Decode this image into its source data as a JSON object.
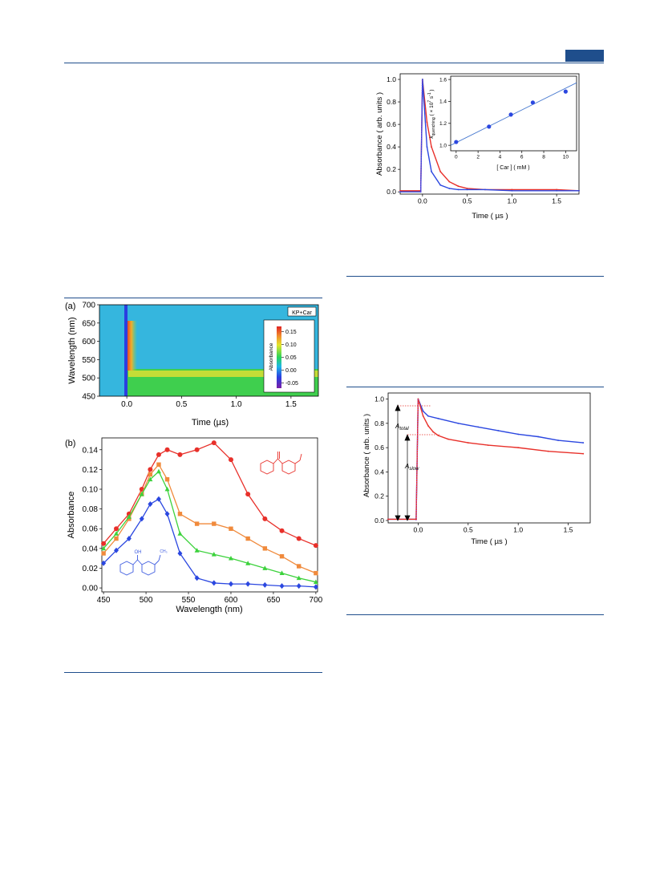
{
  "chart_data": [
    {
      "type": "line",
      "panel": "top-right",
      "xlabel": "Time  ( µs )",
      "ylabel": "Absorbance  ( arb. units )",
      "xlim": [
        -0.25,
        1.75
      ],
      "ylim": [
        -0.02,
        1.05
      ],
      "xticks": [
        "0.0",
        "0.5",
        "1.0",
        "1.5"
      ],
      "yticks": [
        "0.0",
        "0.2",
        "0.4",
        "0.6",
        "0.8",
        "1.0"
      ],
      "series": [
        {
          "color": "#e8302a",
          "x": [
            -0.25,
            -0.02,
            0.0,
            0.05,
            0.1,
            0.2,
            0.3,
            0.4,
            0.5,
            0.7,
            1.0,
            1.5,
            1.75
          ],
          "y": [
            0.01,
            0.01,
            1.0,
            0.62,
            0.4,
            0.18,
            0.09,
            0.05,
            0.03,
            0.02,
            0.02,
            0.02,
            0.01
          ]
        },
        {
          "color": "#2b47e0",
          "x": [
            -0.25,
            -0.02,
            0.0,
            0.05,
            0.1,
            0.2,
            0.3,
            0.4,
            0.5,
            0.7,
            1.0,
            1.5,
            1.75
          ],
          "y": [
            0.0,
            0.0,
            1.0,
            0.4,
            0.18,
            0.06,
            0.03,
            0.02,
            0.02,
            0.02,
            0.01,
            0.01,
            0.01
          ]
        }
      ],
      "inset": {
        "type": "scatter",
        "xlabel": "[ Car ]  ( mM )",
        "ylabel": "k_quenching ( × 10^7 s^-1 )",
        "xlim": [
          -0.5,
          11
        ],
        "ylim": [
          0.95,
          1.63
        ],
        "xticks": [
          "0",
          "2",
          "4",
          "6",
          "8",
          "10"
        ],
        "yticks": [
          "1.0",
          "1.2",
          "1.4",
          "1.6"
        ],
        "x": [
          0,
          3,
          5,
          7,
          10
        ],
        "y": [
          1.03,
          1.17,
          1.28,
          1.39,
          1.49
        ],
        "fit": {
          "x": [
            -0.5,
            11
          ],
          "y": [
            1.0,
            1.57
          ]
        }
      }
    },
    {
      "type": "heatmap",
      "panel": "(a)",
      "label": "(a)",
      "xlabel": "Time  (µs)",
      "ylabel": "Wavelength  (nm)",
      "xlim": [
        -0.25,
        1.75
      ],
      "ylim": [
        450,
        700
      ],
      "xticks": [
        "0.0",
        "0.5",
        "1.0",
        "1.5"
      ],
      "yticks": [
        "450",
        "500",
        "550",
        "600",
        "650",
        "700"
      ],
      "legend_box": "KP+Car",
      "colorbar_label": "Absorbance",
      "colorbar_ticks": [
        "0.15",
        "0.10",
        "0.05",
        "0.00",
        "-0.05"
      ]
    },
    {
      "type": "line",
      "panel": "(b)",
      "label": "(b)",
      "xlabel": "Wavelength  (nm)",
      "ylabel": "Absorbance",
      "xlim": [
        448,
        702
      ],
      "ylim": [
        -0.004,
        0.152
      ],
      "xticks": [
        "450",
        "500",
        "550",
        "600",
        "650",
        "700"
      ],
      "yticks": [
        "0.00",
        "0.02",
        "0.04",
        "0.06",
        "0.08",
        "0.10",
        "0.12",
        "0.14"
      ],
      "x": [
        450,
        465,
        480,
        495,
        505,
        515,
        525,
        540,
        560,
        580,
        600,
        620,
        640,
        660,
        680,
        700
      ],
      "series": [
        {
          "color": "#e8302a",
          "marker": "circle",
          "y": [
            0.045,
            0.06,
            0.075,
            0.1,
            0.12,
            0.135,
            0.14,
            0.135,
            0.14,
            0.147,
            0.13,
            0.095,
            0.07,
            0.058,
            0.05,
            0.043
          ]
        },
        {
          "color": "#f08a3c",
          "marker": "square",
          "y": [
            0.035,
            0.05,
            0.07,
            0.095,
            0.115,
            0.125,
            0.11,
            0.075,
            0.065,
            0.065,
            0.06,
            0.05,
            0.04,
            0.032,
            0.022,
            0.015
          ]
        },
        {
          "color": "#3cd23c",
          "marker": "triangle",
          "y": [
            0.04,
            0.055,
            0.072,
            0.095,
            0.11,
            0.118,
            0.1,
            0.055,
            0.038,
            0.034,
            0.03,
            0.025,
            0.02,
            0.015,
            0.01,
            0.006
          ]
        },
        {
          "color": "#2b47e0",
          "marker": "diamond",
          "y": [
            0.025,
            0.038,
            0.05,
            0.07,
            0.085,
            0.09,
            0.075,
            0.035,
            0.01,
            0.005,
            0.004,
            0.004,
            0.003,
            0.002,
            0.002,
            0.001
          ]
        }
      ],
      "annotations": [
        "OH",
        "CH₃"
      ]
    },
    {
      "type": "line",
      "panel": "bottom-right",
      "xlabel": "Time  ( µs )",
      "ylabel": "Absorbance  ( arb. units )",
      "xlim": [
        -0.3,
        1.72
      ],
      "ylim": [
        -0.02,
        1.05
      ],
      "xticks": [
        "0.0",
        "0.5",
        "1.0",
        "1.5"
      ],
      "yticks": [
        "0.0",
        "0.2",
        "0.4",
        "0.6",
        "0.8",
        "1.0"
      ],
      "series": [
        {
          "color": "#2b47e0",
          "x": [
            -0.3,
            -0.02,
            0.0,
            0.05,
            0.1,
            0.2,
            0.4,
            0.6,
            0.8,
            1.0,
            1.2,
            1.4,
            1.65
          ],
          "y": [
            0.01,
            0.01,
            1.0,
            0.9,
            0.86,
            0.84,
            0.8,
            0.77,
            0.74,
            0.71,
            0.69,
            0.66,
            0.64
          ]
        },
        {
          "color": "#e8302a",
          "x": [
            -0.3,
            -0.02,
            0.0,
            0.05,
            0.1,
            0.15,
            0.2,
            0.3,
            0.5,
            0.7,
            1.0,
            1.3,
            1.65
          ],
          "y": [
            0.01,
            0.01,
            1.0,
            0.86,
            0.78,
            0.73,
            0.7,
            0.67,
            0.64,
            0.62,
            0.6,
            0.57,
            0.55
          ]
        }
      ],
      "annotations": [
        "A_total",
        "A_slow"
      ]
    }
  ]
}
